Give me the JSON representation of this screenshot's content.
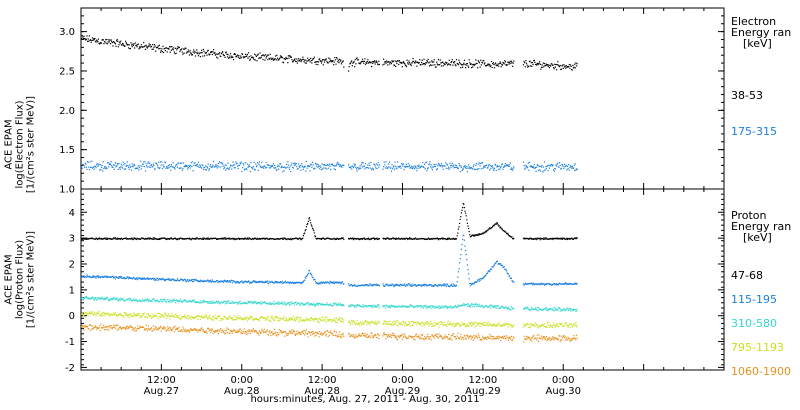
{
  "x_axis_title": "hours:minutes, Aug. 27, 2011 - Aug. 30, 2011",
  "chart_data": [
    {
      "type": "scatter",
      "panel": "electron",
      "ylabel_lines": [
        "ACE EPAM",
        "log(Electron Flux)",
        "[1/(cm²s ster MeV)]"
      ],
      "ylim": [
        1.0,
        3.3
      ],
      "yticks": [
        "1.0",
        "1.5",
        "2.0",
        "2.5",
        "3.0"
      ],
      "ytick_values": [
        1.0,
        1.5,
        2.0,
        2.5,
        3.0
      ],
      "legend_title": [
        "Electron",
        "Energy ran",
        "[keV]"
      ],
      "series": [
        {
          "name": "38-53",
          "color": "#000000",
          "points": [
            [
              0,
              2.92
            ],
            [
              6,
              2.85
            ],
            [
              12,
              2.79
            ],
            [
              18,
              2.74
            ],
            [
              24,
              2.69
            ],
            [
              30,
              2.66
            ],
            [
              36,
              2.64
            ],
            [
              39,
              2.63
            ],
            [
              39.5,
              2.38
            ],
            [
              40,
              2.62
            ],
            [
              46,
              2.61
            ],
            [
              52,
              2.61
            ],
            [
              58,
              2.6
            ],
            [
              62,
              2.59
            ],
            [
              64.5,
              2.6
            ],
            [
              66,
              2.6
            ],
            [
              68,
              2.59
            ],
            [
              72,
              2.57
            ],
            [
              74,
              2.56
            ]
          ],
          "noise": 0.06
        },
        {
          "name": "175-315",
          "color": "#1a7fe0",
          "points": [
            [
              0,
              1.3
            ],
            [
              10,
              1.3
            ],
            [
              20,
              1.3
            ],
            [
              30,
              1.29
            ],
            [
              39,
              1.29
            ],
            [
              40,
              1.29
            ],
            [
              50,
              1.29
            ],
            [
              60,
              1.29
            ],
            [
              64.5,
              1.29
            ],
            [
              66,
              1.29
            ],
            [
              74,
              1.29
            ]
          ],
          "noise": 0.07
        }
      ]
    },
    {
      "type": "scatter",
      "panel": "proton",
      "ylabel_lines": [
        "ACE EPAM",
        "log(Proton Flux)",
        "[1/(cm²s ster MeV)]"
      ],
      "ylim": [
        -2.1,
        4.9
      ],
      "yticks": [
        "-2",
        "-1",
        "0",
        "1",
        "2",
        "3",
        "4"
      ],
      "ytick_values": [
        -2,
        -1,
        0,
        1,
        2,
        3,
        4
      ],
      "legend_title": [
        "Proton",
        "Energy ran",
        "[keV]"
      ],
      "series": [
        {
          "name": "47-68",
          "color": "#000000",
          "points": [
            [
              0,
              3.0
            ],
            [
              20,
              3.0
            ],
            [
              33,
              3.0
            ],
            [
              34,
              3.8
            ],
            [
              35,
              3.0
            ],
            [
              39,
              3.0
            ],
            [
              40,
              3.0
            ],
            [
              56,
              3.0
            ],
            [
              57,
              4.4
            ],
            [
              58,
              3.1
            ],
            [
              60,
              3.2
            ],
            [
              62,
              3.6
            ],
            [
              63,
              3.3
            ],
            [
              64.5,
              3.0
            ],
            [
              66,
              3.0
            ],
            [
              74,
              3.0
            ]
          ],
          "noise": 0.04
        },
        {
          "name": "115-195",
          "color": "#1a7fe0",
          "points": [
            [
              0,
              1.55
            ],
            [
              10,
              1.45
            ],
            [
              20,
              1.35
            ],
            [
              33,
              1.3
            ],
            [
              34,
              1.75
            ],
            [
              35,
              1.3
            ],
            [
              39,
              1.3
            ],
            [
              40,
              1.2
            ],
            [
              56,
              1.2
            ],
            [
              57,
              3.2
            ],
            [
              58,
              1.2
            ],
            [
              60,
              1.5
            ],
            [
              62,
              2.1
            ],
            [
              63,
              1.9
            ],
            [
              64.5,
              1.3
            ],
            [
              66,
              1.25
            ],
            [
              74,
              1.25
            ]
          ],
          "noise": 0.06
        },
        {
          "name": "310-580",
          "color": "#33d8cc",
          "points": [
            [
              0,
              0.7
            ],
            [
              20,
              0.55
            ],
            [
              39,
              0.45
            ],
            [
              40,
              0.4
            ],
            [
              56,
              0.35
            ],
            [
              57,
              0.45
            ],
            [
              64.5,
              0.3
            ],
            [
              66,
              0.3
            ],
            [
              74,
              0.25
            ]
          ],
          "noise": 0.08
        },
        {
          "name": "795-1193",
          "color": "#c8e020",
          "points": [
            [
              0,
              0.1
            ],
            [
              20,
              -0.05
            ],
            [
              39,
              -0.15
            ],
            [
              40,
              -0.25
            ],
            [
              56,
              -0.3
            ],
            [
              64.5,
              -0.35
            ],
            [
              66,
              -0.35
            ],
            [
              74,
              -0.35
            ]
          ],
          "noise": 0.12
        },
        {
          "name": "1060-1900",
          "color": "#e8901c",
          "points": [
            [
              0,
              -0.4
            ],
            [
              20,
              -0.55
            ],
            [
              39,
              -0.7
            ],
            [
              40,
              -0.75
            ],
            [
              56,
              -0.8
            ],
            [
              64.5,
              -0.85
            ],
            [
              66,
              -0.85
            ],
            [
              74,
              -0.85
            ]
          ],
          "noise": 0.15
        }
      ]
    }
  ],
  "x_axis": {
    "xlim": [
      0,
      96
    ],
    "gaps": [
      [
        39.2,
        39.8
      ],
      [
        44.5,
        45.0
      ],
      [
        64.6,
        65.9
      ]
    ],
    "start": 0,
    "end": 74,
    "ticks": [
      {
        "x": 12,
        "time": "12:00",
        "date": "Aug.27"
      },
      {
        "x": 24,
        "time": "0:00",
        "date": "Aug.28"
      },
      {
        "x": 36,
        "time": "12:00",
        "date": "Aug.28"
      },
      {
        "x": 48,
        "time": "0:00",
        "date": "Aug.29"
      },
      {
        "x": 60,
        "time": "12:00",
        "date": "Aug.29"
      },
      {
        "x": 72,
        "time": "0:00",
        "date": "Aug.30"
      }
    ]
  }
}
